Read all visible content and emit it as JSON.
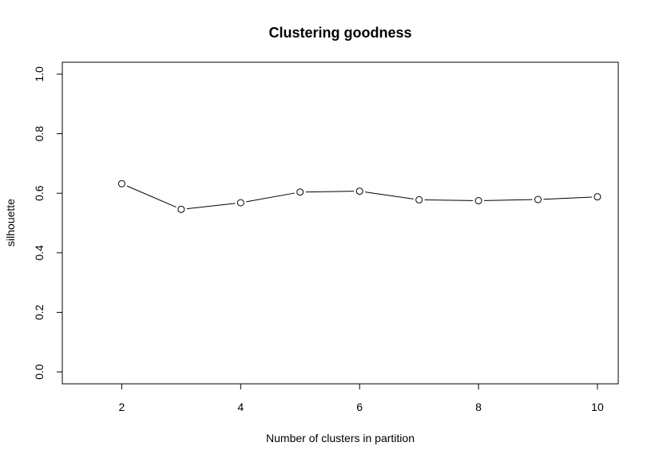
{
  "chart_data": {
    "type": "line",
    "title": "Clustering goodness",
    "xlabel": "Number of clusters in partition",
    "ylabel": "silhouette",
    "xlim": [
      1,
      10.35
    ],
    "ylim": [
      -0.04,
      1.04
    ],
    "x_ticks": [
      2,
      4,
      6,
      8,
      10
    ],
    "y_ticks": [
      0.0,
      0.2,
      0.4,
      0.6,
      0.8,
      1.0
    ],
    "x_tick_labels": [
      "2",
      "4",
      "6",
      "8",
      "10"
    ],
    "y_tick_labels": [
      "0.0",
      "0.2",
      "0.4",
      "0.6",
      "0.8",
      "1.0"
    ],
    "grid": false,
    "series": [
      {
        "x": [
          2,
          3,
          4,
          5,
          6,
          7,
          8,
          9,
          10
        ],
        "values": [
          0.632,
          0.546,
          0.568,
          0.604,
          0.607,
          0.578,
          0.575,
          0.579,
          0.588
        ],
        "color": "#000000",
        "marker": "open-circle"
      }
    ]
  }
}
